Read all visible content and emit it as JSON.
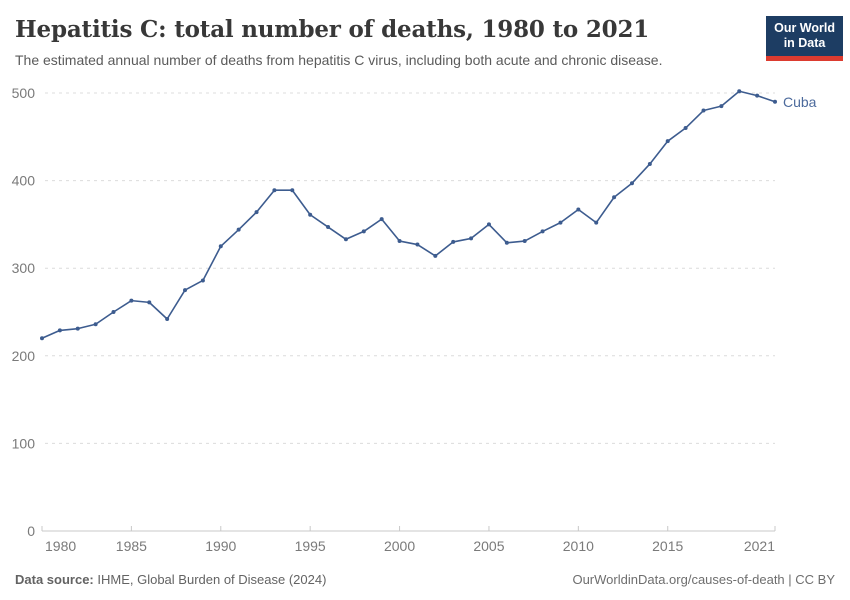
{
  "logo": {
    "line1": "Our World",
    "line2": "in Data"
  },
  "chart_data": {
    "type": "line",
    "title": "Hepatitis C: total number of deaths, 1980 to 2021",
    "subtitle": "The estimated annual number of deaths from hepatitis C virus, including both acute and chronic disease.",
    "x": [
      1980,
      1981,
      1982,
      1983,
      1984,
      1985,
      1986,
      1987,
      1988,
      1989,
      1990,
      1991,
      1992,
      1993,
      1994,
      1995,
      1996,
      1997,
      1998,
      1999,
      2000,
      2001,
      2002,
      2003,
      2004,
      2005,
      2006,
      2007,
      2008,
      2009,
      2010,
      2011,
      2012,
      2013,
      2014,
      2015,
      2016,
      2017,
      2018,
      2019,
      2020,
      2021
    ],
    "series": [
      {
        "name": "Cuba",
        "color": "#3d5c8f",
        "label_color": "#4c6a9c",
        "values": [
          220,
          229,
          231,
          236,
          250,
          263,
          261,
          242,
          275,
          286,
          325,
          344,
          364,
          389,
          389,
          361,
          347,
          333,
          342,
          356,
          331,
          327,
          314,
          330,
          334,
          350,
          329,
          331,
          342,
          352,
          367,
          352,
          381,
          397,
          419,
          445,
          460,
          480,
          485,
          502,
          497,
          490
        ]
      }
    ],
    "xlabel": "",
    "ylabel": "",
    "ylim": [
      0,
      500
    ],
    "yticks": [
      0,
      100,
      200,
      300,
      400,
      500
    ],
    "xticks": [
      1980,
      1985,
      1990,
      1995,
      2000,
      2005,
      2010,
      2015,
      2021
    ],
    "grid": "dashed horizontal gridlines",
    "legend_position": "end-of-line label",
    "axis_color": "#c8c8c8",
    "grid_color": "#dcdcdc",
    "tick_label_color": "#7a7a7a"
  },
  "footer": {
    "data_source_label": "Data source:",
    "data_source_value": "IHME, Global Burden of Disease (2024)",
    "right_text": "OurWorldinData.org/causes-of-death | CC BY"
  }
}
